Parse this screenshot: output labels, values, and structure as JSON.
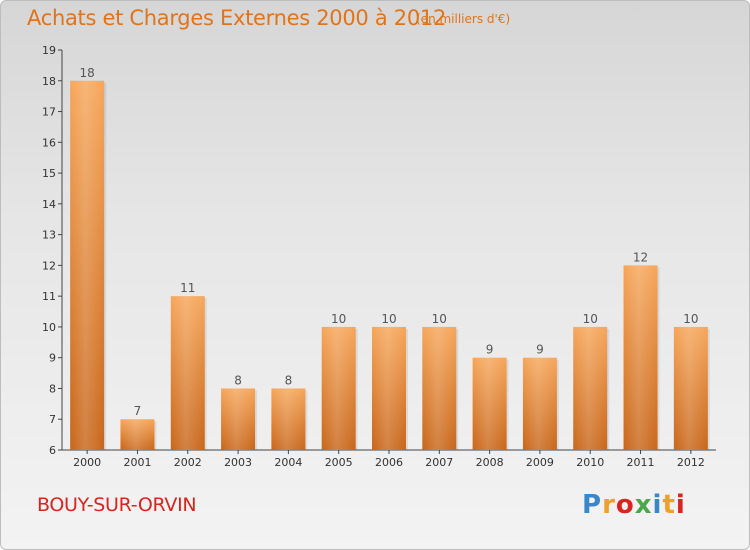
{
  "header": {
    "title": "Achats et Charges Externes 2000 à 2012",
    "subtitle": "(en milliers d'€)"
  },
  "footer": {
    "commune": "BOUY-SUR-ORVIN",
    "logo_letters": [
      "P",
      "r",
      "o",
      "x",
      "i",
      "t",
      "i"
    ],
    "logo_colors": [
      "#3a87c8",
      "#f0a028",
      "#d9251d",
      "#4aa84a",
      "#3a87c8",
      "#f0a028",
      "#d9251d"
    ]
  },
  "colors": {
    "bar_top": "#f6a65a",
    "bar_bottom": "#c8661a",
    "title": "#e0741a"
  },
  "chart_data": {
    "type": "bar",
    "title": "Achats et Charges Externes 2000 à 2012",
    "categories": [
      "2000",
      "2001",
      "2002",
      "2003",
      "2004",
      "2005",
      "2006",
      "2007",
      "2008",
      "2009",
      "2010",
      "2011",
      "2012"
    ],
    "values": [
      18,
      7,
      11,
      8,
      8,
      10,
      10,
      10,
      9,
      9,
      10,
      12,
      10
    ],
    "ylim": [
      6,
      19
    ],
    "yticks": [
      6,
      7,
      8,
      9,
      10,
      11,
      12,
      13,
      14,
      15,
      16,
      17,
      18,
      19
    ],
    "xlabel": "",
    "ylabel": "",
    "grid": false
  }
}
